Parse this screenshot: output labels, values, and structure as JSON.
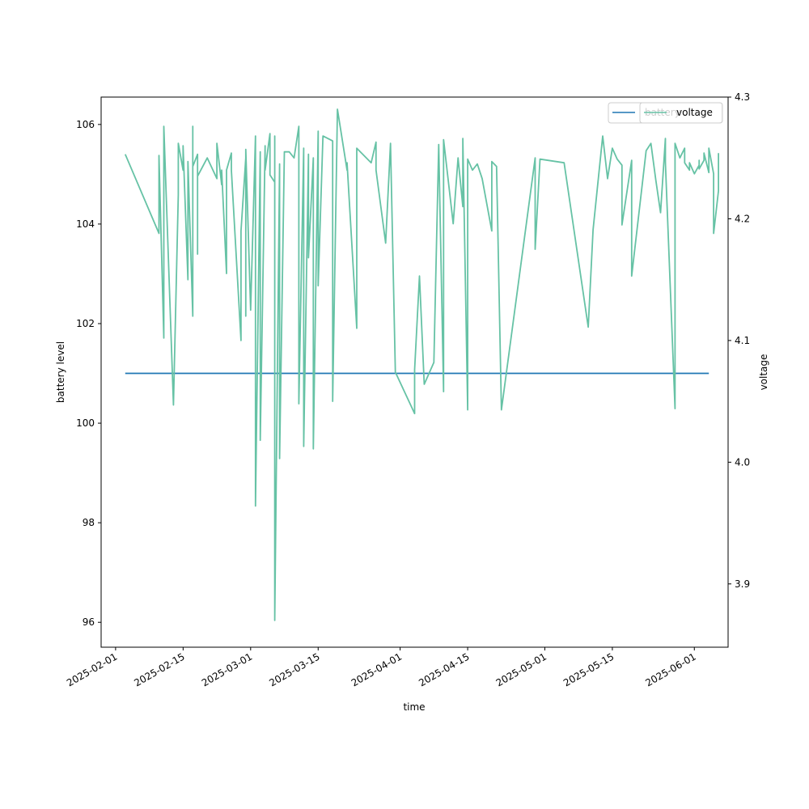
{
  "chart_data": {
    "type": "line",
    "xlabel": "time",
    "ylabel_left": "battery level",
    "ylabel_right": "voltage",
    "x_range": [
      "2025-01-29",
      "2025-06-08"
    ],
    "ylim_left": [
      95.5,
      106.55
    ],
    "ylim_right": [
      3.848,
      4.3
    ],
    "x_ticks": [
      "2025-02-01",
      "2025-02-15",
      "2025-03-01",
      "2025-03-15",
      "2025-04-01",
      "2025-04-15",
      "2025-05-01",
      "2025-05-15",
      "2025-06-01"
    ],
    "y_ticks_left": [
      96,
      98,
      100,
      102,
      104,
      106
    ],
    "y_ticks_right": [
      3.9,
      4.0,
      4.1,
      4.2,
      4.3
    ],
    "y_tick_labels_right": [
      "3.9",
      "4.0",
      "4.1",
      "4.2",
      "4.3"
    ],
    "grid": false,
    "legend_position": "top-right",
    "series": [
      {
        "name": "battery",
        "axis": "left",
        "color": "#1f77b4",
        "points": [
          [
            "2025-02-03",
            101
          ],
          [
            "2025-06-04",
            101
          ]
        ]
      },
      {
        "name": "voltage",
        "axis": "right",
        "color": "#66c2a5",
        "points": [
          [
            "2025-02-03",
            4.253
          ],
          [
            "2025-02-10",
            4.188
          ],
          [
            "2025-02-10",
            4.252
          ],
          [
            "2025-02-11",
            4.102
          ],
          [
            "2025-02-11",
            4.276
          ],
          [
            "2025-02-13",
            4.047
          ],
          [
            "2025-02-14",
            4.22
          ],
          [
            "2025-02-14",
            4.262
          ],
          [
            "2025-02-15",
            4.24
          ],
          [
            "2025-02-15",
            4.26
          ],
          [
            "2025-02-16",
            4.15
          ],
          [
            "2025-02-16",
            4.247
          ],
          [
            "2025-02-17",
            4.12
          ],
          [
            "2025-02-17",
            4.276
          ],
          [
            "2025-02-17",
            4.243
          ],
          [
            "2025-02-18",
            4.253
          ],
          [
            "2025-02-18",
            4.171
          ],
          [
            "2025-02-18",
            4.235
          ],
          [
            "2025-02-20",
            4.25
          ],
          [
            "2025-02-22",
            4.233
          ],
          [
            "2025-02-22",
            4.262
          ],
          [
            "2025-02-23",
            4.228
          ],
          [
            "2025-02-23",
            4.24
          ],
          [
            "2025-02-24",
            4.155
          ],
          [
            "2025-02-24",
            4.24
          ],
          [
            "2025-02-25",
            4.254
          ],
          [
            "2025-02-25",
            4.24
          ],
          [
            "2025-02-27",
            4.1
          ],
          [
            "2025-02-27",
            4.19
          ],
          [
            "2025-02-28",
            4.25
          ],
          [
            "2025-02-28",
            4.12
          ],
          [
            "2025-02-28",
            4.257
          ],
          [
            "2025-03-01",
            4.125
          ],
          [
            "2025-03-02",
            4.268
          ],
          [
            "2025-03-02",
            3.964
          ],
          [
            "2025-03-03",
            4.255
          ],
          [
            "2025-03-03",
            4.018
          ],
          [
            "2025-03-04",
            4.26
          ],
          [
            "2025-03-04",
            4.24
          ],
          [
            "2025-03-05",
            4.27
          ],
          [
            "2025-03-05",
            4.236
          ],
          [
            "2025-03-06",
            4.23
          ],
          [
            "2025-03-06",
            4.268
          ],
          [
            "2025-03-06",
            4.1
          ],
          [
            "2025-03-06",
            4.247
          ],
          [
            "2025-03-06",
            3.87
          ],
          [
            "2025-03-07",
            4.245
          ],
          [
            "2025-03-07",
            4.003
          ],
          [
            "2025-03-08",
            4.255
          ],
          [
            "2025-03-09",
            4.255
          ],
          [
            "2025-03-10",
            4.25
          ],
          [
            "2025-03-11",
            4.276
          ],
          [
            "2025-03-11",
            4.048
          ],
          [
            "2025-03-12",
            4.258
          ],
          [
            "2025-03-12",
            4.013
          ],
          [
            "2025-03-13",
            4.253
          ],
          [
            "2025-03-13",
            4.168
          ],
          [
            "2025-03-14",
            4.25
          ],
          [
            "2025-03-14",
            4.011
          ],
          [
            "2025-03-15",
            4.272
          ],
          [
            "2025-03-15",
            4.145
          ],
          [
            "2025-03-16",
            4.268
          ],
          [
            "2025-03-18",
            4.264
          ],
          [
            "2025-03-18",
            4.05
          ],
          [
            "2025-03-19",
            4.29
          ],
          [
            "2025-03-21",
            4.24
          ],
          [
            "2025-03-21",
            4.246
          ],
          [
            "2025-03-23",
            4.11
          ],
          [
            "2025-03-23",
            4.14
          ],
          [
            "2025-03-23",
            4.258
          ],
          [
            "2025-03-26",
            4.246
          ],
          [
            "2025-03-27",
            4.263
          ],
          [
            "2025-03-27",
            4.24
          ],
          [
            "2025-03-29",
            4.18
          ],
          [
            "2025-03-30",
            4.262
          ],
          [
            "2025-03-31",
            4.074
          ],
          [
            "2025-04-04",
            4.04
          ],
          [
            "2025-04-04",
            4.076
          ],
          [
            "2025-04-05",
            4.153
          ],
          [
            "2025-04-06",
            4.064
          ],
          [
            "2025-04-08",
            4.082
          ],
          [
            "2025-04-09",
            4.261
          ],
          [
            "2025-04-10",
            4.058
          ],
          [
            "2025-04-10",
            4.265
          ],
          [
            "2025-04-12",
            4.196
          ],
          [
            "2025-04-13",
            4.25
          ],
          [
            "2025-04-14",
            4.21
          ],
          [
            "2025-04-14",
            4.266
          ],
          [
            "2025-04-15",
            4.043
          ],
          [
            "2025-04-15",
            4.249
          ],
          [
            "2025-04-16",
            4.24
          ],
          [
            "2025-04-17",
            4.245
          ],
          [
            "2025-04-18",
            4.233
          ],
          [
            "2025-04-20",
            4.19
          ],
          [
            "2025-04-20",
            4.247
          ],
          [
            "2025-04-21",
            4.243
          ],
          [
            "2025-04-22",
            4.043
          ],
          [
            "2025-04-29",
            4.25
          ],
          [
            "2025-04-29",
            4.175
          ],
          [
            "2025-04-30",
            4.249
          ],
          [
            "2025-05-05",
            4.246
          ],
          [
            "2025-05-10",
            4.111
          ],
          [
            "2025-05-11",
            4.191
          ],
          [
            "2025-05-13",
            4.268
          ],
          [
            "2025-05-14",
            4.233
          ],
          [
            "2025-05-15",
            4.258
          ],
          [
            "2025-05-16",
            4.249
          ],
          [
            "2025-05-17",
            4.244
          ],
          [
            "2025-05-17",
            4.195
          ],
          [
            "2025-05-19",
            4.248
          ],
          [
            "2025-05-19",
            4.153
          ],
          [
            "2025-05-22",
            4.256
          ],
          [
            "2025-05-23",
            4.262
          ],
          [
            "2025-05-24",
            4.232
          ],
          [
            "2025-05-25",
            4.205
          ],
          [
            "2025-05-26",
            4.266
          ],
          [
            "2025-05-26",
            4.246
          ],
          [
            "2025-05-28",
            4.044
          ],
          [
            "2025-05-28",
            4.262
          ],
          [
            "2025-05-29",
            4.25
          ],
          [
            "2025-05-30",
            4.258
          ],
          [
            "2025-05-30",
            4.246
          ],
          [
            "2025-05-31",
            4.24
          ],
          [
            "2025-05-31",
            4.246
          ],
          [
            "2025-06-01",
            4.237
          ],
          [
            "2025-06-02",
            4.244
          ],
          [
            "2025-06-02",
            4.248
          ],
          [
            "2025-06-02",
            4.241
          ],
          [
            "2025-06-03",
            4.248
          ],
          [
            "2025-06-03",
            4.254
          ],
          [
            "2025-06-04",
            4.238
          ],
          [
            "2025-06-04",
            4.258
          ],
          [
            "2025-06-05",
            4.237
          ],
          [
            "2025-06-05",
            4.188
          ],
          [
            "2025-06-06",
            4.223
          ],
          [
            "2025-06-06",
            4.254
          ]
        ]
      }
    ],
    "legend": [
      {
        "label": "battery",
        "color": "#1f77b4"
      },
      {
        "label": "voltage",
        "color": "#66c2a5"
      }
    ]
  }
}
